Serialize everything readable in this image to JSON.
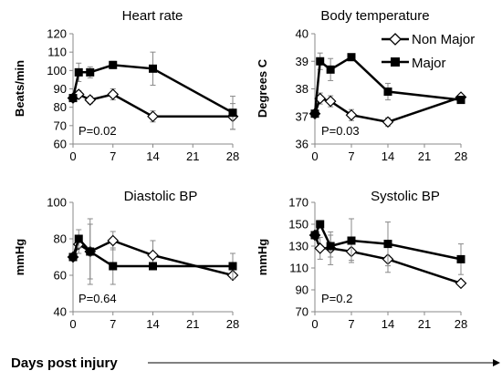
{
  "legend": {
    "nonmajor": "Non Major",
    "major": "Major"
  },
  "xcaption": "Days post injury",
  "chart_data": [
    {
      "type": "line",
      "title": "Heart rate",
      "ylabel": "Beats/min",
      "xlim": [
        0,
        28
      ],
      "ylim": [
        60,
        120
      ],
      "xticks": [
        0,
        7,
        14,
        21,
        28
      ],
      "yticks": [
        60,
        70,
        80,
        90,
        100,
        110,
        120
      ],
      "annotation": "P=0.02",
      "series": [
        {
          "name": "Non Major",
          "x": [
            0,
            1,
            3,
            7,
            14,
            28
          ],
          "values": [
            85,
            87,
            84,
            87,
            75,
            75
          ],
          "err": [
            0,
            2,
            2,
            3,
            3,
            7
          ]
        },
        {
          "name": "Major",
          "x": [
            0,
            1,
            3,
            7,
            14,
            28
          ],
          "values": [
            85,
            99,
            99,
            103,
            101,
            77
          ],
          "err": [
            0,
            5,
            3,
            2,
            9,
            9
          ]
        }
      ]
    },
    {
      "type": "line",
      "title": "Body temperature",
      "ylabel": "Degrees C",
      "xlim": [
        0,
        28
      ],
      "ylim": [
        36,
        40
      ],
      "xticks": [
        0,
        7,
        14,
        21,
        28
      ],
      "yticks": [
        36,
        37,
        38,
        39,
        40
      ],
      "annotation": "P=0.03",
      "series": [
        {
          "name": "Non Major",
          "x": [
            0,
            1,
            3,
            7,
            14,
            28
          ],
          "values": [
            37.1,
            37.65,
            37.55,
            37.05,
            36.8,
            37.7
          ],
          "err": [
            0,
            0.2,
            0.2,
            0.2,
            0.15,
            0.1
          ]
        },
        {
          "name": "Major",
          "x": [
            0,
            1,
            3,
            7,
            14,
            28
          ],
          "values": [
            37.1,
            39.0,
            38.7,
            39.15,
            37.9,
            37.6
          ],
          "err": [
            0,
            0.3,
            0.4,
            0,
            0.3,
            0.1
          ]
        }
      ]
    },
    {
      "type": "line",
      "title": "Diastolic BP",
      "ylabel": "mmHg",
      "xlim": [
        0,
        28
      ],
      "ylim": [
        40,
        100
      ],
      "xticks": [
        0,
        7,
        14,
        21,
        28
      ],
      "yticks": [
        40,
        60,
        80,
        100
      ],
      "annotation": "P=0.64",
      "series": [
        {
          "name": "Non Major",
          "x": [
            0,
            1,
            3,
            7,
            14,
            28
          ],
          "values": [
            70,
            77,
            73,
            79,
            71,
            60
          ],
          "err": [
            0,
            5,
            15,
            5,
            8,
            0
          ]
        },
        {
          "name": "Major",
          "x": [
            0,
            1,
            3,
            7,
            14,
            28
          ],
          "values": [
            70,
            80,
            73,
            65,
            65,
            65
          ],
          "err": [
            0,
            5,
            18,
            10,
            0,
            7
          ]
        }
      ]
    },
    {
      "type": "line",
      "title": "Systolic BP",
      "ylabel": "mmHg",
      "xlim": [
        0,
        28
      ],
      "ylim": [
        70,
        170
      ],
      "xticks": [
        0,
        7,
        14,
        21,
        28
      ],
      "yticks": [
        70,
        90,
        110,
        130,
        150,
        170
      ],
      "annotation": "P=0.2",
      "series": [
        {
          "name": "Non Major",
          "x": [
            0,
            1,
            3,
            7,
            14,
            28
          ],
          "values": [
            140,
            128,
            128,
            125,
            118,
            96
          ],
          "err": [
            0,
            10,
            15,
            8,
            12,
            0
          ]
        },
        {
          "name": "Major",
          "x": [
            0,
            1,
            3,
            7,
            14,
            28
          ],
          "values": [
            140,
            150,
            130,
            135,
            132,
            118
          ],
          "err": [
            0,
            0,
            10,
            20,
            20,
            14
          ]
        }
      ]
    }
  ]
}
